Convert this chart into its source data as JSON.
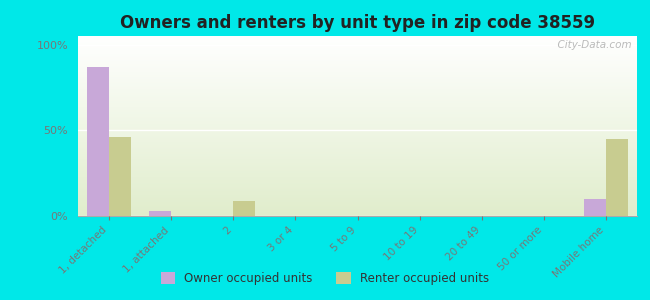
{
  "title": "Owners and renters by unit type in zip code 38559",
  "categories": [
    "1, detached",
    "1, attached",
    "2",
    "3 or 4",
    "5 to 9",
    "10 to 19",
    "20 to 49",
    "50 or more",
    "Mobile home"
  ],
  "owner_values": [
    87,
    3,
    0,
    0,
    0,
    0,
    0,
    0,
    10
  ],
  "renter_values": [
    46,
    0,
    9,
    0,
    0,
    0,
    0,
    0,
    45
  ],
  "owner_color": "#c8a8d8",
  "renter_color": "#c8cc90",
  "background_color": "#00e8e8",
  "ylabel_ticks": [
    "0%",
    "50%",
    "100%"
  ],
  "ytick_vals": [
    0,
    50,
    100
  ],
  "ylim": [
    0,
    105
  ],
  "bar_width": 0.35,
  "legend_labels": [
    "Owner occupied units",
    "Renter occupied units"
  ],
  "watermark": "  City-Data.com"
}
